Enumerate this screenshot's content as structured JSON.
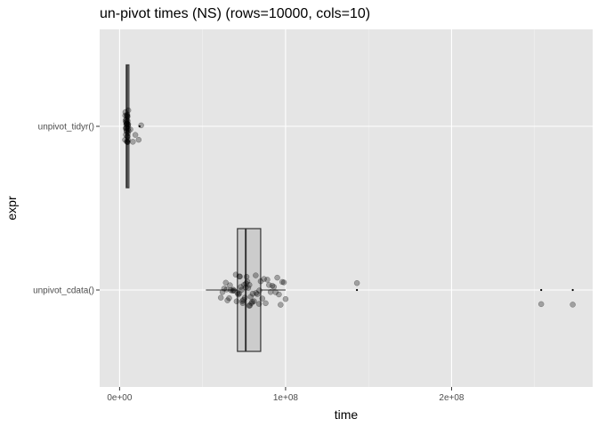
{
  "chart_data": {
    "type": "box",
    "title": "un-pivot times (NS) (rows=10000, cols=10)",
    "xlabel": "time",
    "ylabel": "expr",
    "categories": [
      "unpivot_tidyr()",
      "unpivot_cdata()"
    ],
    "xlim": [
      -12000000,
      285000000
    ],
    "x_ticks": [
      0,
      100000000,
      200000000
    ],
    "x_tick_labels": [
      "0e+00",
      "1e+08",
      "2e+08"
    ],
    "grid": true,
    "colors": {
      "panel_background": "#e5e5e5",
      "grid_major": "#ffffff",
      "grid_minor": "#f2f2f2",
      "box_fill": "#cccccc",
      "box_edge": "#333333",
      "point": "#000000"
    },
    "series": [
      {
        "category": "unpivot_tidyr()",
        "whisker_low": 4000000,
        "q1": 4000000,
        "median": 4500000,
        "q3": 5000000,
        "whisker_high": 5500000,
        "outliers": [
          12000000
        ],
        "points": [
          3300000,
          3500000,
          3700000,
          3900000,
          4000000,
          4100000,
          4200000,
          4300000,
          4400000,
          4500000,
          4600000,
          4700000,
          4800000,
          4900000,
          5000000,
          5100000,
          5200000,
          5300000,
          3600000,
          3800000,
          4050000,
          4250000,
          4450000,
          4650000,
          4850000,
          5050000,
          5250000,
          3400000,
          4150000,
          4550000,
          4950000,
          3950000,
          4350000,
          4750000,
          5150000,
          8000000,
          11500000,
          13000000,
          9500000,
          6500000
        ]
      },
      {
        "category": "unpivot_cdata()",
        "whisker_low": 52000000,
        "q1": 71000000,
        "median": 76000000,
        "q3": 85000000,
        "whisker_high": 100000000,
        "outliers": [
          143000000,
          254000000,
          273000000
        ],
        "points": [
          61000000,
          62000000,
          63000000,
          64000000,
          65000000,
          66000000,
          67000000,
          68000000,
          69000000,
          70000000,
          71000000,
          72000000,
          73000000,
          74000000,
          75000000,
          76000000,
          77000000,
          78000000,
          79000000,
          80000000,
          81000000,
          82000000,
          83000000,
          84000000,
          85000000,
          86000000,
          87000000,
          88000000,
          89000000,
          90000000,
          91000000,
          92000000,
          93000000,
          94000000,
          95000000,
          96000000,
          97000000,
          98000000,
          99000000,
          100000000,
          70500000,
          71500000,
          72500000,
          73500000,
          74500000,
          75500000,
          76500000,
          77500000,
          78500000,
          79500000,
          64500000,
          66500000,
          68500000,
          72200000,
          74200000,
          76200000,
          78200000,
          80200000,
          82200000,
          84200000,
          143000000,
          254000000,
          273000000
        ]
      }
    ]
  }
}
